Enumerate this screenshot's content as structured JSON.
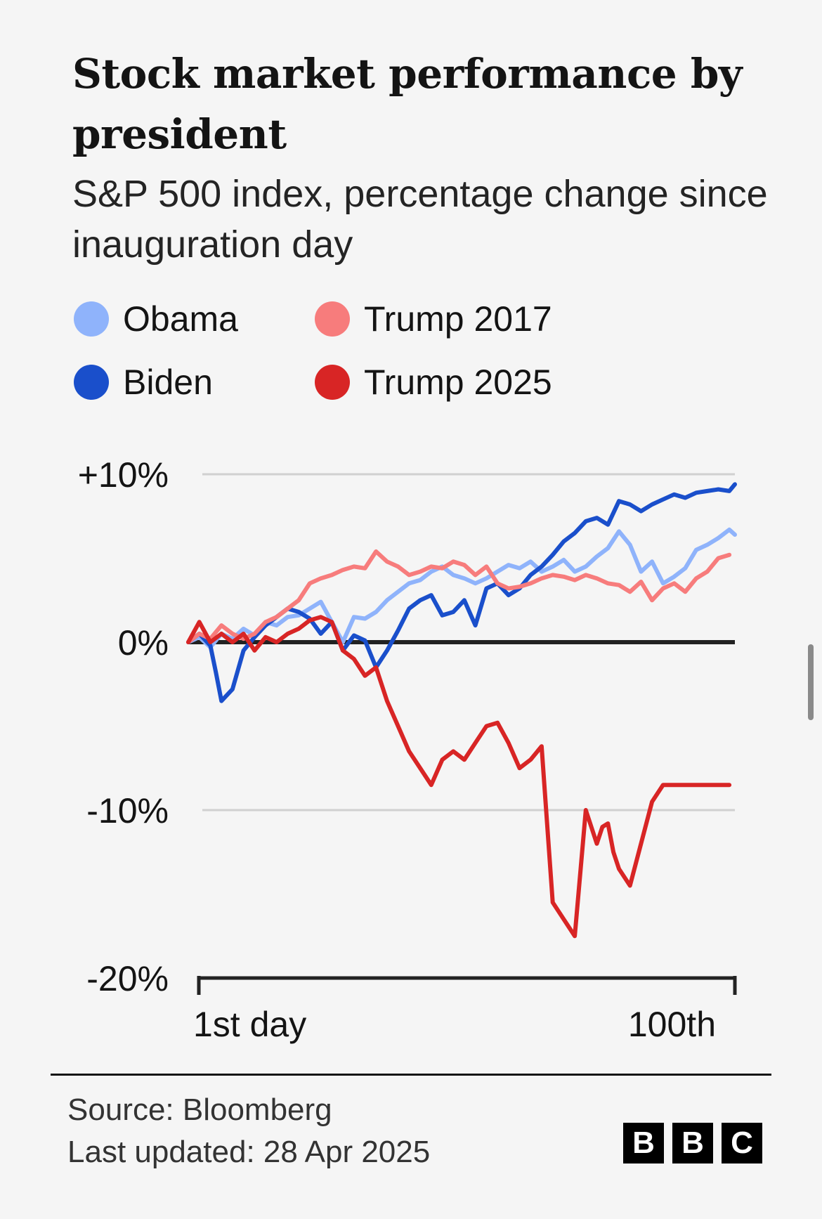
{
  "colors": {
    "obama": "#8fb3fb",
    "biden": "#1a4fcb",
    "trump2017": "#f77c7c",
    "trump2025": "#d82525",
    "zero_line": "#222222",
    "grid": "#d0d0d0"
  },
  "chart_data": {
    "type": "line",
    "title": "Stock market performance by president",
    "subtitle": "S&P 500 index, percentage change since inauguration day",
    "xlabel": "",
    "ylabel": "",
    "x_tick_labels": [
      "1st day",
      "100th"
    ],
    "xlim": [
      1,
      100
    ],
    "ylim": [
      -20,
      10
    ],
    "y_ticks": [
      {
        "value": 10,
        "label": "+10%"
      },
      {
        "value": 0,
        "label": "0%"
      },
      {
        "value": -10,
        "label": "-10%"
      },
      {
        "value": -20,
        "label": "-20%"
      }
    ],
    "legend_position": "top-left",
    "series": [
      {
        "name": "Obama",
        "key": "obama",
        "x": [
          1,
          3,
          5,
          7,
          9,
          11,
          13,
          15,
          17,
          19,
          21,
          23,
          25,
          27,
          29,
          31,
          33,
          35,
          37,
          39,
          41,
          43,
          45,
          47,
          49,
          51,
          53,
          55,
          57,
          59,
          61,
          63,
          65,
          67,
          69,
          71,
          73,
          75,
          77,
          79,
          81,
          83,
          85,
          87,
          89,
          91,
          93,
          95,
          97,
          99,
          100
        ],
        "values": [
          0.0,
          0.3,
          -0.3,
          0.5,
          0.2,
          0.8,
          0.4,
          1.2,
          1.0,
          1.5,
          1.6,
          2.0,
          2.4,
          1.2,
          0.0,
          1.5,
          1.4,
          1.8,
          2.5,
          3.0,
          3.5,
          3.7,
          4.2,
          4.5,
          4.0,
          3.8,
          3.5,
          3.8,
          4.2,
          4.6,
          4.4,
          4.8,
          4.2,
          4.5,
          4.9,
          4.2,
          4.5,
          5.1,
          5.6,
          6.6,
          5.8,
          4.2,
          4.8,
          3.5,
          3.9,
          4.4,
          5.5,
          5.8,
          6.2,
          6.7,
          6.4
        ]
      },
      {
        "name": "Biden",
        "key": "biden",
        "x": [
          1,
          3,
          5,
          6,
          7,
          9,
          11,
          13,
          15,
          17,
          19,
          21,
          23,
          25,
          27,
          29,
          31,
          33,
          35,
          37,
          39,
          41,
          43,
          45,
          47,
          49,
          51,
          53,
          55,
          57,
          59,
          61,
          63,
          65,
          67,
          69,
          71,
          73,
          75,
          77,
          79,
          81,
          83,
          85,
          87,
          89,
          91,
          93,
          95,
          97,
          99,
          100
        ],
        "values": [
          0.0,
          0.5,
          -0.2,
          -1.8,
          -3.5,
          -2.8,
          -0.5,
          0.3,
          1.0,
          1.5,
          2.0,
          1.8,
          1.4,
          0.5,
          1.2,
          -0.5,
          0.4,
          0.1,
          -1.5,
          -0.5,
          0.7,
          2.0,
          2.5,
          2.8,
          1.6,
          1.8,
          2.5,
          1.0,
          3.2,
          3.5,
          2.8,
          3.2,
          4.0,
          4.5,
          5.2,
          6.0,
          6.5,
          7.2,
          7.4,
          7.0,
          8.4,
          8.2,
          7.8,
          8.2,
          8.5,
          8.8,
          8.6,
          8.9,
          9.0,
          9.1,
          9.0,
          9.4
        ]
      },
      {
        "name": "Trump 2017",
        "key": "trump2017",
        "x": [
          1,
          3,
          5,
          7,
          9,
          11,
          13,
          15,
          17,
          19,
          21,
          23,
          25,
          27,
          29,
          31,
          33,
          35,
          37,
          39,
          41,
          43,
          45,
          47,
          49,
          51,
          53,
          55,
          57,
          59,
          61,
          63,
          65,
          67,
          69,
          71,
          73,
          75,
          77,
          79,
          81,
          83,
          85,
          87,
          89,
          91,
          93,
          95,
          97,
          99
        ],
        "values": [
          0.0,
          0.5,
          0.2,
          1.0,
          0.5,
          0.2,
          0.5,
          1.2,
          1.5,
          2.0,
          2.5,
          3.5,
          3.8,
          4.0,
          4.3,
          4.5,
          4.4,
          5.4,
          4.8,
          4.5,
          4.0,
          4.2,
          4.5,
          4.4,
          4.8,
          4.6,
          4.0,
          4.5,
          3.5,
          3.2,
          3.3,
          3.5,
          3.8,
          4.0,
          3.9,
          3.7,
          4.0,
          3.8,
          3.5,
          3.4,
          3.0,
          3.6,
          2.5,
          3.2,
          3.5,
          3.0,
          3.8,
          4.2,
          5.0,
          5.2
        ]
      },
      {
        "name": "Trump 2025",
        "key": "trump2025",
        "x": [
          1,
          3,
          5,
          7,
          9,
          11,
          13,
          15,
          17,
          19,
          21,
          23,
          25,
          27,
          29,
          31,
          33,
          35,
          37,
          39,
          41,
          43,
          45,
          47,
          49,
          51,
          53,
          55,
          57,
          59,
          61,
          63,
          65,
          67,
          69,
          71,
          73,
          75,
          76,
          77,
          78,
          79,
          81,
          83,
          85,
          87,
          89,
          91,
          93,
          95,
          97,
          99
        ],
        "values": [
          0.0,
          1.2,
          0.0,
          0.5,
          0.0,
          0.5,
          -0.5,
          0.3,
          0.0,
          0.5,
          0.8,
          1.3,
          1.5,
          1.2,
          -0.5,
          -1.0,
          -2.0,
          -1.5,
          -3.5,
          -5.0,
          -6.5,
          -7.5,
          -8.5,
          -7.0,
          -6.5,
          -7.0,
          -6.0,
          -5.0,
          -4.8,
          -6.0,
          -7.5,
          -7.0,
          -6.2,
          -15.5,
          -16.5,
          -17.5,
          -10.0,
          -12.0,
          -11.0,
          -10.8,
          -12.5,
          -13.5,
          -14.5,
          -12.0,
          -9.5,
          -8.5,
          -8.5,
          -8.5,
          -8.5,
          -8.5,
          -8.5,
          -8.5
        ]
      }
    ]
  },
  "legend": {
    "items": [
      {
        "label": "Obama",
        "key": "obama"
      },
      {
        "label": "Trump 2017",
        "key": "trump2017"
      },
      {
        "label": "Biden",
        "key": "biden"
      },
      {
        "label": "Trump 2025",
        "key": "trump2025"
      }
    ]
  },
  "footer": {
    "source": "Source: Bloomberg",
    "updated": "Last updated: 28 Apr 2025",
    "logo_letters": [
      "B",
      "B",
      "C"
    ]
  }
}
